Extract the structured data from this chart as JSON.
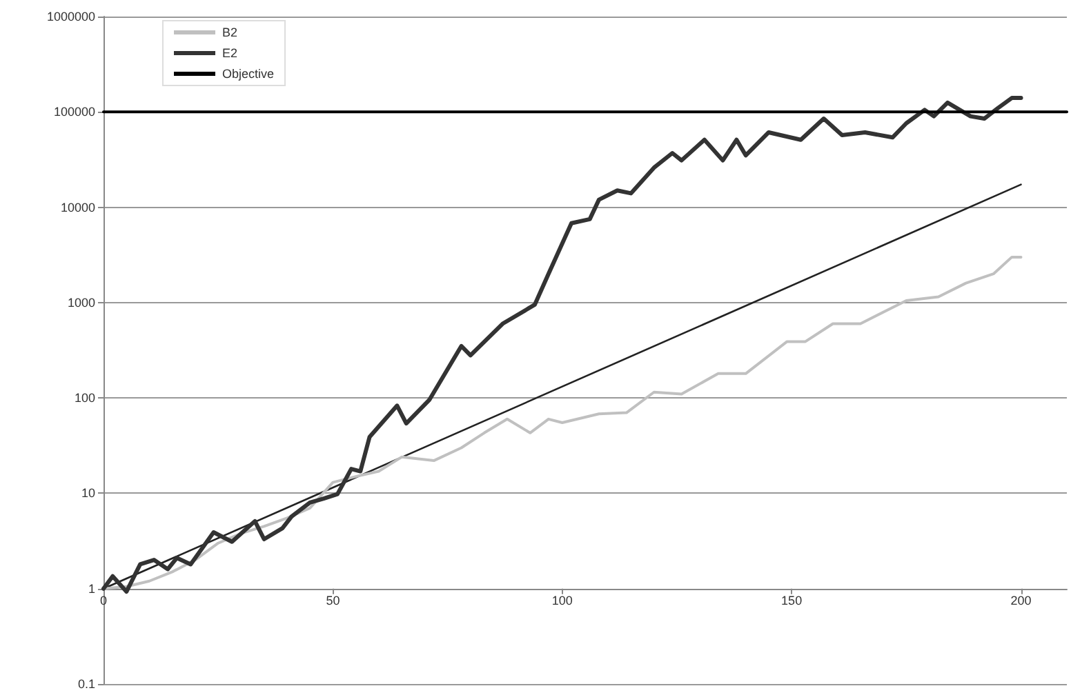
{
  "chart_data": {
    "type": "line",
    "log": "y",
    "grid": "y",
    "legend": "top left",
    "marker": "none",
    "xlim": [
      0,
      210
    ],
    "xticks": [
      0,
      50,
      100,
      150,
      200
    ],
    "ylim": [
      0.1,
      1000000
    ],
    "yticks": [
      0.1,
      1,
      10,
      100,
      1000,
      10000,
      100000,
      1000000
    ],
    "series": [
      {
        "name": "B2",
        "color": "#c0c0c0",
        "x": [
          0,
          5,
          10,
          15,
          20,
          25,
          30,
          35,
          40,
          45,
          50,
          55,
          60,
          65,
          72,
          78,
          83,
          88,
          93,
          97,
          100,
          108,
          114,
          120,
          126,
          134,
          140,
          149,
          153,
          159,
          165,
          175,
          182,
          188,
          194,
          198,
          200
        ],
        "values": [
          1,
          1.05,
          1.2,
          1.5,
          2,
          3,
          3.8,
          4.5,
          5.5,
          7,
          13,
          15,
          17,
          24,
          22,
          30,
          43,
          60,
          43,
          60,
          55,
          68,
          70,
          115,
          110,
          180,
          180,
          390,
          390,
          600,
          600,
          1050,
          1150,
          1600,
          2000,
          3000,
          3000
        ]
      },
      {
        "name": "E2",
        "color": "#333333",
        "x": [
          0,
          2,
          5,
          8,
          11,
          14,
          16,
          19,
          24,
          28,
          33,
          35,
          39,
          41,
          45,
          48,
          51,
          54,
          56,
          58,
          64,
          66,
          71,
          75,
          78,
          80,
          87,
          94,
          97,
          102,
          106,
          108,
          112,
          115,
          120,
          124,
          126,
          131,
          135,
          138,
          140,
          145,
          152,
          157,
          161,
          166,
          172,
          175,
          179,
          181,
          184,
          189,
          192,
          195,
          198,
          200
        ],
        "values": [
          1,
          1.35,
          0.93,
          1.8,
          2,
          1.6,
          2.1,
          1.8,
          3.9,
          3.1,
          5.1,
          3.3,
          4.3,
          5.7,
          8,
          8.8,
          9.8,
          18,
          17,
          39,
          83,
          54,
          95,
          200,
          350,
          280,
          600,
          950,
          2000,
          6800,
          7500,
          12000,
          15000,
          14000,
          26000,
          37000,
          31000,
          51000,
          31000,
          51000,
          35000,
          61000,
          51000,
          85000,
          57000,
          61000,
          54000,
          76000,
          105000,
          90000,
          125000,
          90000,
          85000,
          110000,
          140000,
          140000
        ]
      },
      {
        "name": "Objective",
        "color": "#000000",
        "x": [
          0,
          210
        ],
        "values": [
          100000,
          100000
        ]
      },
      {
        "color": "#222222",
        "x": [
          0,
          200
        ],
        "values": [
          1,
          17300
        ]
      }
    ]
  }
}
